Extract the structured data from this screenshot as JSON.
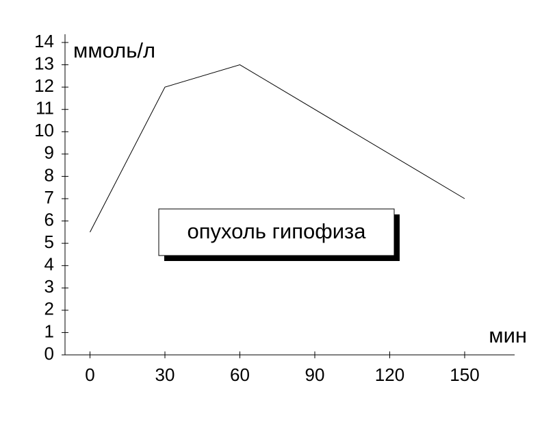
{
  "chart_data": {
    "type": "line",
    "y_label": "ммоль/л",
    "x_label": "мин",
    "annotation": "опухоль гипофиза",
    "x": [
      0,
      30,
      60,
      150
    ],
    "values": [
      5.5,
      12,
      13,
      7
    ],
    "color": "#000000",
    "xlim": [
      -10,
      170
    ],
    "xticks": [
      0,
      30,
      60,
      90,
      120,
      150
    ],
    "ylim": [
      0,
      14
    ],
    "yticks": [
      0,
      1,
      2,
      3,
      4,
      5,
      6,
      7,
      8,
      9,
      10,
      11,
      12,
      13,
      14
    ],
    "grid": false
  }
}
